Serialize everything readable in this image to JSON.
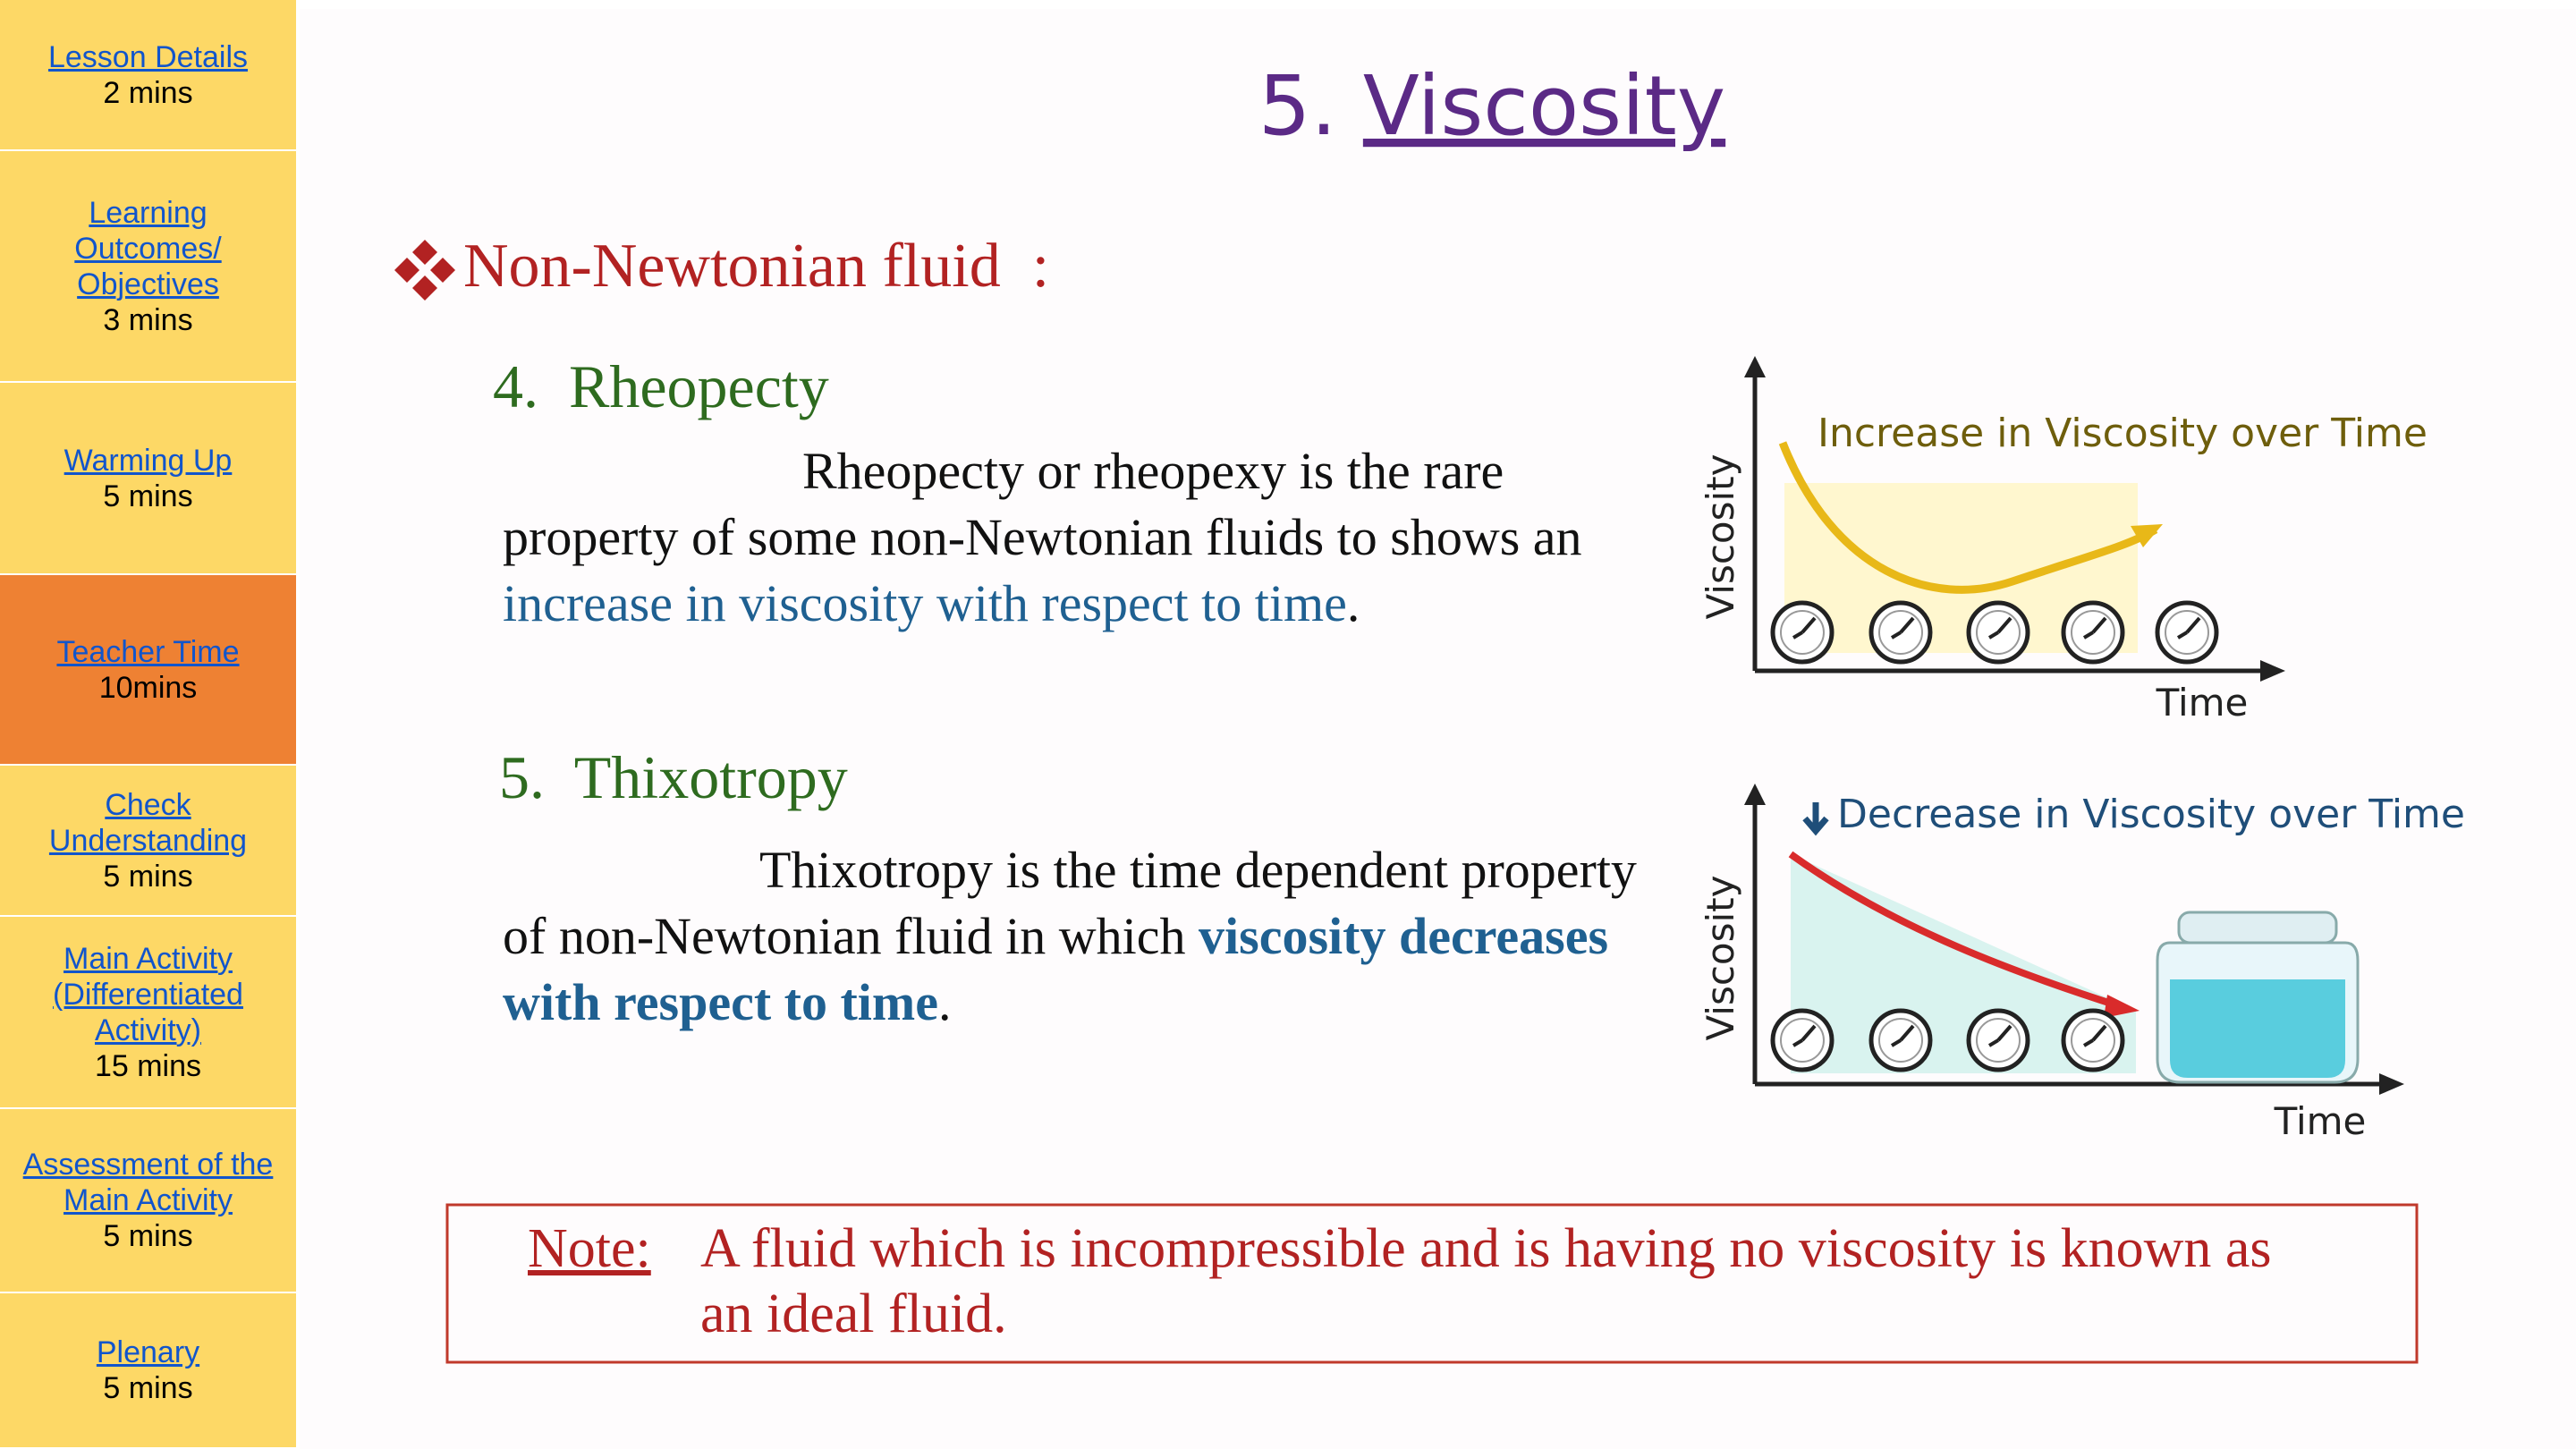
{
  "sidebar": {
    "items": [
      {
        "title": "Lesson Details",
        "duration": "2 mins"
      },
      {
        "title": "Learning Outcomes/ Objectives",
        "duration": "3 mins"
      },
      {
        "title": "Warming Up",
        "duration": "5 mins"
      },
      {
        "title": "Teacher Time",
        "duration": "10mins"
      },
      {
        "title": "Check Understanding",
        "duration": "5 mins"
      },
      {
        "title": "Main Activity (Differentiated Activity)",
        "duration": "15 mins"
      },
      {
        "title": "Assessment of the Main Activity",
        "duration": "5 mins"
      },
      {
        "title": "Plenary",
        "duration": "5 mins"
      }
    ]
  },
  "slide": {
    "title_number": "5.",
    "title": "Viscosity",
    "heading": "Non-Newtonian fluid  :",
    "sections": [
      {
        "heading": "4.  Rheopecty",
        "text_before": "Rheopecty or rheopexy is the rare property of some non-Newtonian fluids to shows an ",
        "highlight": "increase in viscosity with respect to time",
        "text_after": ".",
        "diagram": {
          "caption": "Increase in Viscosity over Time",
          "y_label": "Viscosity",
          "x_label": "Time"
        }
      },
      {
        "heading": "5.  Thixotropy",
        "text_before": "Thixotropy is the time dependent property of non-Newtonian fluid in which ",
        "highlight": "viscosity decreases with respect to time",
        "text_after": ".",
        "diagram": {
          "caption": "Decrease in Viscosity over Time",
          "y_label": "Viscosity",
          "x_label": "Time"
        }
      }
    ],
    "note": {
      "label": "Note:",
      "text": "A fluid which is incompressible and is having no viscosity is known as an ideal fluid."
    }
  }
}
